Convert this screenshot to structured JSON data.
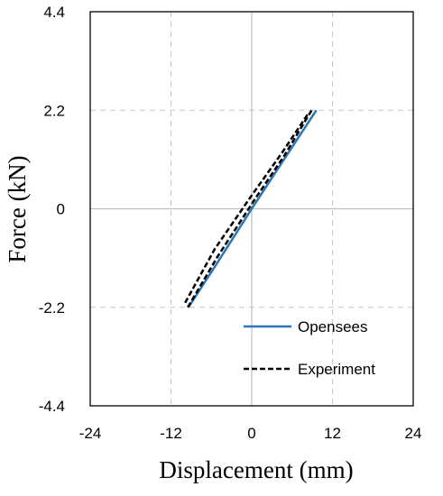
{
  "chart_data": {
    "type": "line",
    "title": "",
    "xlabel": "Displacement  (mm)",
    "ylabel": "Force  (kN)",
    "xlim": [
      -24,
      24
    ],
    "ylim": [
      -4.4,
      4.4
    ],
    "x_ticks": [
      "-24",
      "-12",
      "0",
      "12",
      "24"
    ],
    "y_ticks": [
      "4.4",
      "2.2",
      "0",
      "-2.2",
      "-4.4"
    ],
    "grid": "dashed",
    "legend_position": "bottom-right",
    "series": [
      {
        "name": "Opensees",
        "color": "#2e75b6",
        "style": "solid",
        "x": [
          -9.4,
          -5.0,
          0.0,
          5.0,
          9.6
        ],
        "y": [
          -2.2,
          -1.18,
          0.0,
          1.15,
          2.2
        ]
      },
      {
        "name": "Experiment",
        "color": "#000000",
        "style": "dashed",
        "x": [
          -9.9,
          -5.5,
          0.0,
          4.5,
          8.5
        ],
        "y": [
          -2.1,
          -0.9,
          0.3,
          1.25,
          2.15
        ],
        "x2": [
          -9.5,
          -5.0,
          0.5,
          4.9,
          8.9
        ],
        "y2": [
          -2.2,
          -1.05,
          0.22,
          1.2,
          2.2
        ]
      }
    ]
  }
}
